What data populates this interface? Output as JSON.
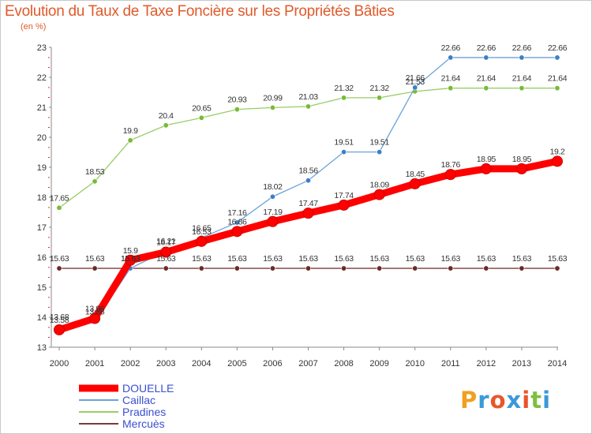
{
  "title": "Evolution du Taux de Taxe Foncière sur les Propriétés Bâties",
  "subtitle": "(en %)",
  "logo": {
    "text": "Proxiti",
    "colors": [
      "#f0a020",
      "#3a9ad9",
      "#e8562a",
      "#3a9ad9",
      "#e8562a",
      "#7fbf3f",
      "#3a9ad9"
    ]
  },
  "chart_data": {
    "type": "line",
    "title": "Evolution du Taux de Taxe Foncière sur les Propriétés Bâties",
    "ylabel": "(en %)",
    "x": [
      "2000",
      "2001",
      "2002",
      "2003",
      "2004",
      "2005",
      "2006",
      "2007",
      "2008",
      "2009",
      "2010",
      "2011",
      "2012",
      "2013",
      "2014"
    ],
    "ylim": [
      13,
      23
    ],
    "yticks": [
      13,
      14,
      15,
      16,
      17,
      18,
      19,
      20,
      21,
      22,
      23
    ],
    "grid": false,
    "legend": "bottom-left",
    "series": [
      {
        "name": "DOUELLE",
        "color": "#ff0000",
        "thick": true,
        "values": [
          13.58,
          13.96,
          15.9,
          16.17,
          16.53,
          16.86,
          17.19,
          17.47,
          17.74,
          18.09,
          18.45,
          18.76,
          18.95,
          18.95,
          19.2
        ],
        "labels": [
          "13.58",
          "13.96",
          "15.9",
          "16.17",
          "16.53",
          "16.86",
          "17.19",
          "17.47",
          "17.74",
          "18.09",
          "18.45",
          "18.76",
          "18.95",
          "18.95",
          "19.2"
        ]
      },
      {
        "name": "Caillac",
        "color": "#6aa3d8",
        "marker": "#3d7fc4",
        "values": [
          13.68,
          13.86,
          15.63,
          16.21,
          16.65,
          17.16,
          18.02,
          18.56,
          19.51,
          19.51,
          21.66,
          22.66,
          22.66,
          22.66,
          22.66
        ],
        "labels": [
          "13.68",
          "13.86",
          "15.63",
          "16.21",
          "16.65",
          "17.16",
          "18.02",
          "18.56",
          "19.51",
          "19.51",
          "21.66",
          "22.66",
          "22.66",
          "22.66",
          "22.66"
        ]
      },
      {
        "name": "Pradines",
        "color": "#99cc66",
        "marker": "#77bb33",
        "values": [
          17.65,
          18.53,
          19.9,
          20.4,
          20.65,
          20.93,
          20.99,
          21.03,
          21.32,
          21.32,
          21.53,
          21.64,
          21.64,
          21.64,
          21.64
        ],
        "labels": [
          "17.65",
          "18.53",
          "19.9",
          "20.4",
          "20.65",
          "20.93",
          "20.99",
          "21.03",
          "21.32",
          "21.32",
          "21.53",
          "21.64",
          "21.64",
          "21.64",
          "21.64"
        ]
      },
      {
        "name": "Mercuès",
        "color": "#7a3b3b",
        "marker": "#6b2a2a",
        "values": [
          15.63,
          15.63,
          15.63,
          15.63,
          15.63,
          15.63,
          15.63,
          15.63,
          15.63,
          15.63,
          15.63,
          15.63,
          15.63,
          15.63,
          15.63
        ],
        "labels": [
          "15.63",
          "15.63",
          "15.63",
          "15.63",
          "15.63",
          "15.63",
          "15.63",
          "15.63",
          "15.63",
          "15.63",
          "15.63",
          "15.63",
          "15.63",
          "15.63",
          "15.63"
        ]
      }
    ]
  }
}
